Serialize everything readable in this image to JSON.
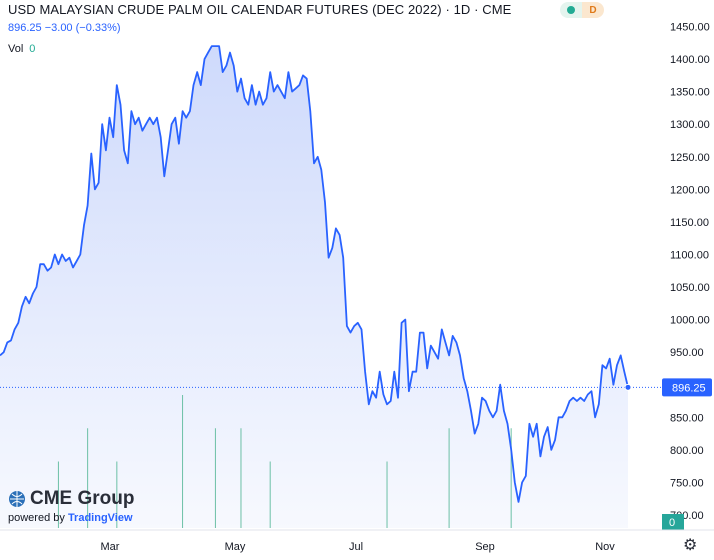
{
  "header": {
    "title": "USD MALAYSIAN CRUDE PALM OIL CALENDAR FUTURES (DEC 2022) · 1D · CME",
    "pill_right": "D"
  },
  "quote": {
    "last": "896.25",
    "change": "−3.00 (−0.33%)"
  },
  "volume": {
    "label": "Vol",
    "value": "0"
  },
  "brand": {
    "logo_text": "CME Group",
    "powered_by": "powered by",
    "tv_name": "TradingView"
  },
  "colors": {
    "line": "#2962ff",
    "area_top": "#c9d6fb",
    "volume": "#6cc0a6",
    "last_label_bg": "#2962ff",
    "vol_label_bg": "#26a69a"
  },
  "chart_data": {
    "type": "area",
    "title": "USD MALAYSIAN CRUDE PALM OIL CALENDAR FUTURES (DEC 2022) · 1D · CME",
    "x_tick_labels": [
      "Mar",
      "May",
      "Jul",
      "Sep",
      "Nov"
    ],
    "y_ticks": [
      700,
      750,
      800,
      850,
      900,
      950,
      1000,
      1050,
      1100,
      1150,
      1200,
      1250,
      1300,
      1350,
      1400,
      1450
    ],
    "ylim": [
      680,
      1460
    ],
    "last_value_label": "896.25",
    "volume_axis_label": "0",
    "price": [
      945,
      950,
      965,
      968,
      985,
      995,
      1020,
      1035,
      1025,
      1040,
      1050,
      1085,
      1085,
      1075,
      1080,
      1100,
      1085,
      1100,
      1090,
      1095,
      1080,
      1090,
      1100,
      1145,
      1175,
      1255,
      1200,
      1210,
      1300,
      1260,
      1310,
      1280,
      1360,
      1330,
      1260,
      1240,
      1320,
      1300,
      1310,
      1290,
      1300,
      1310,
      1300,
      1310,
      1280,
      1220,
      1260,
      1300,
      1310,
      1270,
      1320,
      1310,
      1320,
      1360,
      1380,
      1360,
      1400,
      1410,
      1420,
      1420,
      1420,
      1380,
      1390,
      1410,
      1390,
      1350,
      1370,
      1340,
      1330,
      1360,
      1330,
      1350,
      1330,
      1340,
      1380,
      1350,
      1360,
      1350,
      1340,
      1380,
      1350,
      1355,
      1360,
      1375,
      1370,
      1320,
      1240,
      1250,
      1230,
      1180,
      1095,
      1110,
      1140,
      1130,
      1095,
      990,
      980,
      990,
      995,
      985,
      920,
      870,
      890,
      880,
      920,
      885,
      870,
      875,
      920,
      880,
      995,
      1000,
      890,
      920,
      920,
      980,
      980,
      925,
      960,
      950,
      940,
      985,
      965,
      945,
      975,
      965,
      945,
      910,
      890,
      860,
      825,
      840,
      880,
      875,
      860,
      850,
      860,
      900,
      860,
      840,
      800,
      750,
      720,
      750,
      760,
      840,
      820,
      840,
      790,
      820,
      835,
      800,
      815,
      850,
      850,
      860,
      875,
      880,
      875,
      880,
      875,
      885,
      890,
      850,
      870,
      930,
      925,
      940,
      900,
      930,
      945,
      920,
      896
    ],
    "volume": [
      0,
      0,
      0,
      0,
      0,
      0,
      0,
      0,
      0,
      0,
      0,
      0,
      0,
      0,
      0,
      0,
      2,
      0,
      0,
      0,
      0,
      0,
      0,
      0,
      3,
      0,
      0,
      0,
      0,
      0,
      0,
      0,
      2,
      0,
      0,
      0,
      0,
      0,
      0,
      0,
      0,
      0,
      0,
      0,
      0,
      0,
      0,
      0,
      0,
      0,
      4,
      0,
      0,
      0,
      0,
      0,
      0,
      0,
      0,
      3,
      0,
      0,
      0,
      0,
      0,
      0,
      3,
      0,
      0,
      0,
      0,
      0,
      0,
      0,
      2,
      0,
      0,
      0,
      0,
      0,
      0,
      0,
      0,
      0,
      0,
      0,
      0,
      0,
      0,
      0,
      0,
      0,
      0,
      0,
      0,
      0,
      0,
      0,
      0,
      0,
      0,
      0,
      0,
      0,
      0,
      0,
      2,
      0,
      0,
      0,
      0,
      0,
      0,
      0,
      0,
      0,
      0,
      0,
      0,
      0,
      0,
      0,
      0,
      3,
      0,
      0,
      0,
      0,
      0,
      0,
      0,
      0,
      0,
      0,
      0,
      0,
      0,
      0,
      0,
      0,
      3,
      0,
      0,
      0,
      0,
      0,
      0,
      0,
      0,
      0,
      0,
      0,
      0,
      0,
      0,
      0,
      0,
      0,
      0,
      0,
      0,
      0,
      0,
      0,
      0,
      0,
      0,
      0,
      0,
      0,
      0
    ]
  }
}
